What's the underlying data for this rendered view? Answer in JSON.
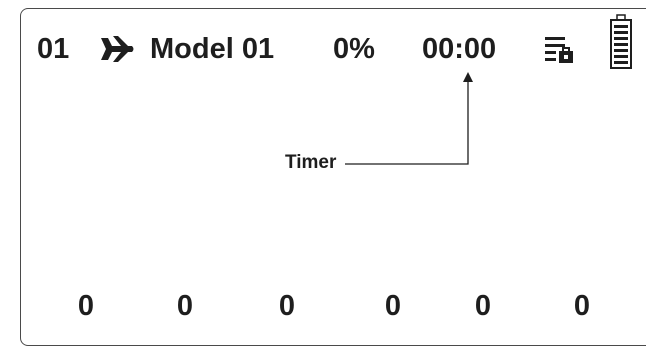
{
  "status_bar": {
    "model_number": "01",
    "model_type_icon": "airplane-icon",
    "model_name": "Model 01",
    "throttle_percent": "0%",
    "timer": "00:00",
    "list_icon": "list-lock-icon",
    "battery_icon": "battery-icon"
  },
  "annotation": {
    "label": "Timer"
  },
  "channels": [
    "0",
    "0",
    "0",
    "0",
    "0",
    "0"
  ],
  "colors": {
    "text": "#1e1e1e",
    "border": "#4a4a4a",
    "background": "#ffffff"
  }
}
